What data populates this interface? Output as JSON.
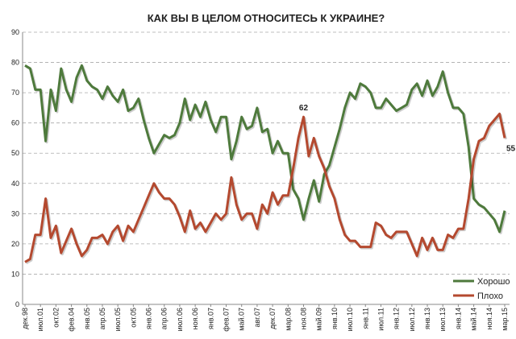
{
  "chart_data": {
    "type": "line",
    "title": "КАК ВЫ В ЦЕЛОМ ОТНОСИТЕСЬ К УКРАИНЕ?",
    "categories": [
      "дек.98",
      null,
      null,
      "июл.01",
      null,
      null,
      "окт.02",
      null,
      null,
      "фев.04",
      null,
      null,
      "янв.05",
      null,
      null,
      "апр.05",
      null,
      null,
      "июл.05",
      null,
      null,
      "окт.05",
      null,
      null,
      "янв.06",
      null,
      null,
      "апр.06",
      null,
      null,
      "июл.06",
      null,
      null,
      "ноя.06",
      null,
      null,
      "янв.07",
      null,
      null,
      "фев.07",
      null,
      null,
      "май.07",
      null,
      null,
      "авг.07",
      null,
      null,
      "дек.07",
      null,
      null,
      "мар.08",
      null,
      null,
      "ноя.08",
      null,
      null,
      "май.09",
      null,
      null,
      "янв.10",
      null,
      null,
      "июл.10",
      null,
      null,
      "янв.11",
      null,
      null,
      "июл.11",
      null,
      null,
      "янв.12",
      null,
      null,
      "июл.12",
      null,
      null,
      "янв.13",
      null,
      null,
      "июл.13",
      null,
      null,
      "янв.14",
      null,
      null,
      "май.14",
      null,
      null,
      "ноя.14",
      null,
      null,
      "мар.15"
    ],
    "series": [
      {
        "name": "Хорошо",
        "color": "#4e7a3c",
        "values": [
          79,
          78,
          71,
          71,
          54,
          71,
          64,
          78,
          71,
          67,
          75,
          79,
          74,
          72,
          71,
          68,
          72,
          69,
          67,
          71,
          64,
          65,
          68,
          61,
          55,
          50,
          53,
          56,
          55,
          56,
          60,
          68,
          61,
          66,
          62,
          67,
          61,
          57,
          62,
          62,
          48,
          54,
          62,
          58,
          59,
          65,
          57,
          58,
          50,
          54,
          50,
          50,
          38,
          35,
          28,
          35,
          41,
          34,
          43,
          46,
          52,
          58,
          65,
          70,
          68,
          73,
          72,
          70,
          65,
          65,
          68,
          66,
          64,
          65,
          66,
          71,
          73,
          69,
          74,
          69,
          72,
          77,
          70,
          65,
          65,
          63,
          52,
          35,
          33,
          32,
          30,
          28,
          24,
          31
        ]
      },
      {
        "name": "Плохо",
        "color": "#b4492f",
        "values": [
          14,
          15,
          23,
          23,
          35,
          22,
          26,
          17,
          21,
          25,
          20,
          16,
          18,
          22,
          22,
          23,
          20,
          24,
          26,
          21,
          26,
          24,
          28,
          32,
          36,
          40,
          37,
          35,
          35,
          33,
          29,
          24,
          31,
          25,
          27,
          24,
          27,
          30,
          28,
          30,
          42,
          33,
          28,
          30,
          30,
          25,
          33,
          30,
          37,
          33,
          36,
          36,
          45,
          55,
          62,
          49,
          55,
          49,
          45,
          39,
          35,
          28,
          23,
          21,
          21,
          19,
          19,
          19,
          27,
          26,
          23,
          22,
          24,
          24,
          24,
          20,
          16,
          22,
          18,
          22,
          18,
          18,
          23,
          22,
          25,
          25,
          35,
          48,
          54,
          55,
          59,
          61,
          63,
          55
        ],
        "value_labels": [
          null,
          null,
          null,
          null,
          null,
          null,
          null,
          null,
          null,
          null,
          null,
          null,
          null,
          null,
          null,
          null,
          null,
          null,
          null,
          null,
          null,
          null,
          null,
          null,
          null,
          null,
          null,
          null,
          null,
          null,
          null,
          null,
          null,
          null,
          null,
          null,
          null,
          null,
          null,
          null,
          null,
          null,
          null,
          null,
          null,
          null,
          null,
          null,
          null,
          null,
          null,
          null,
          null,
          null,
          "62",
          null,
          null,
          null,
          null,
          null,
          null,
          null,
          null,
          null,
          null,
          null,
          null,
          null,
          null,
          null,
          null,
          null,
          null,
          null,
          null,
          null,
          null,
          null,
          null,
          null,
          null,
          null,
          null,
          null,
          null,
          null,
          null,
          null,
          null,
          null,
          null,
          null,
          null,
          "55"
        ]
      }
    ],
    "ylim": [
      0,
      90
    ],
    "yticks": [
      0,
      10,
      20,
      30,
      40,
      50,
      60,
      70,
      80,
      90
    ],
    "grid": true,
    "legend": "lower right"
  }
}
